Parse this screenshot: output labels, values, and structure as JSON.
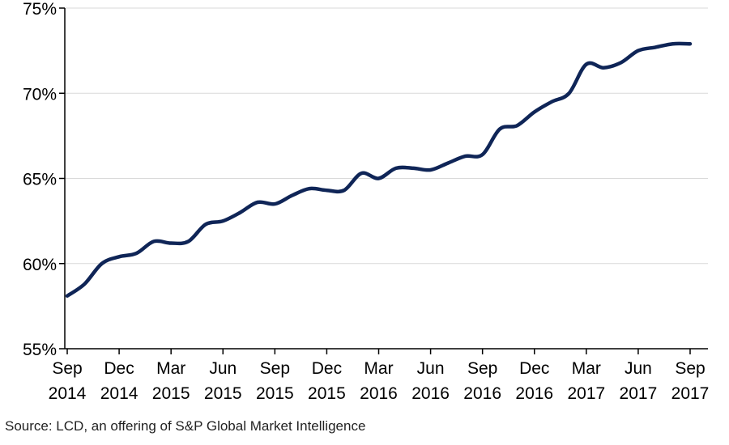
{
  "source": "Source: LCD, an offering of S&P Global Market Intelligence",
  "colors": {
    "line": "#0f2557",
    "grid": "#d9d9d9",
    "axis": "#000000"
  },
  "chart_data": {
    "type": "line",
    "title": "",
    "xlabel": "",
    "ylabel": "",
    "ylim": [
      55,
      75
    ],
    "yticks": [
      55,
      60,
      65,
      70,
      75
    ],
    "ytick_labels": [
      "55%",
      "60%",
      "65%",
      "70%",
      "75%"
    ],
    "grid": true,
    "x_tick_labels": [
      [
        "Sep",
        "2014"
      ],
      [
        "Dec",
        "2014"
      ],
      [
        "Mar",
        "2015"
      ],
      [
        "Jun",
        "2015"
      ],
      [
        "Sep",
        "2015"
      ],
      [
        "Dec",
        "2015"
      ],
      [
        "Mar",
        "2016"
      ],
      [
        "Jun",
        "2016"
      ],
      [
        "Sep",
        "2016"
      ],
      [
        "Dec",
        "2016"
      ],
      [
        "Mar",
        "2017"
      ],
      [
        "Jun",
        "2017"
      ],
      [
        "Sep",
        "2017"
      ]
    ],
    "series": [
      {
        "x": [
          "Sep 2014",
          "Oct 2014",
          "Nov 2014",
          "Dec 2014",
          "Jan 2015",
          "Feb 2015",
          "Mar 2015",
          "Apr 2015",
          "May 2015",
          "Jun 2015",
          "Jul 2015",
          "Aug 2015",
          "Sep 2015",
          "Oct 2015",
          "Nov 2015",
          "Dec 2015",
          "Jan 2016",
          "Feb 2016",
          "Mar 2016",
          "Apr 2016",
          "May 2016",
          "Jun 2016",
          "Jul 2016",
          "Aug 2016",
          "Sep 2016",
          "Oct 2016",
          "Nov 2016",
          "Dec 2016",
          "Jan 2017",
          "Feb 2017",
          "Mar 2017",
          "Apr 2017",
          "May 2017",
          "Jun 2017",
          "Jul 2017",
          "Aug 2017",
          "Sep 2017"
        ],
        "values": [
          58.1,
          58.8,
          60.0,
          60.4,
          60.6,
          61.3,
          61.2,
          61.3,
          62.3,
          62.5,
          63.0,
          63.6,
          63.5,
          64.0,
          64.4,
          64.3,
          64.3,
          65.3,
          65.0,
          65.6,
          65.6,
          65.5,
          65.9,
          66.3,
          66.4,
          67.9,
          68.1,
          68.9,
          69.5,
          70.0,
          71.7,
          71.5,
          71.8,
          72.5,
          72.7,
          72.9,
          72.9
        ]
      }
    ]
  }
}
